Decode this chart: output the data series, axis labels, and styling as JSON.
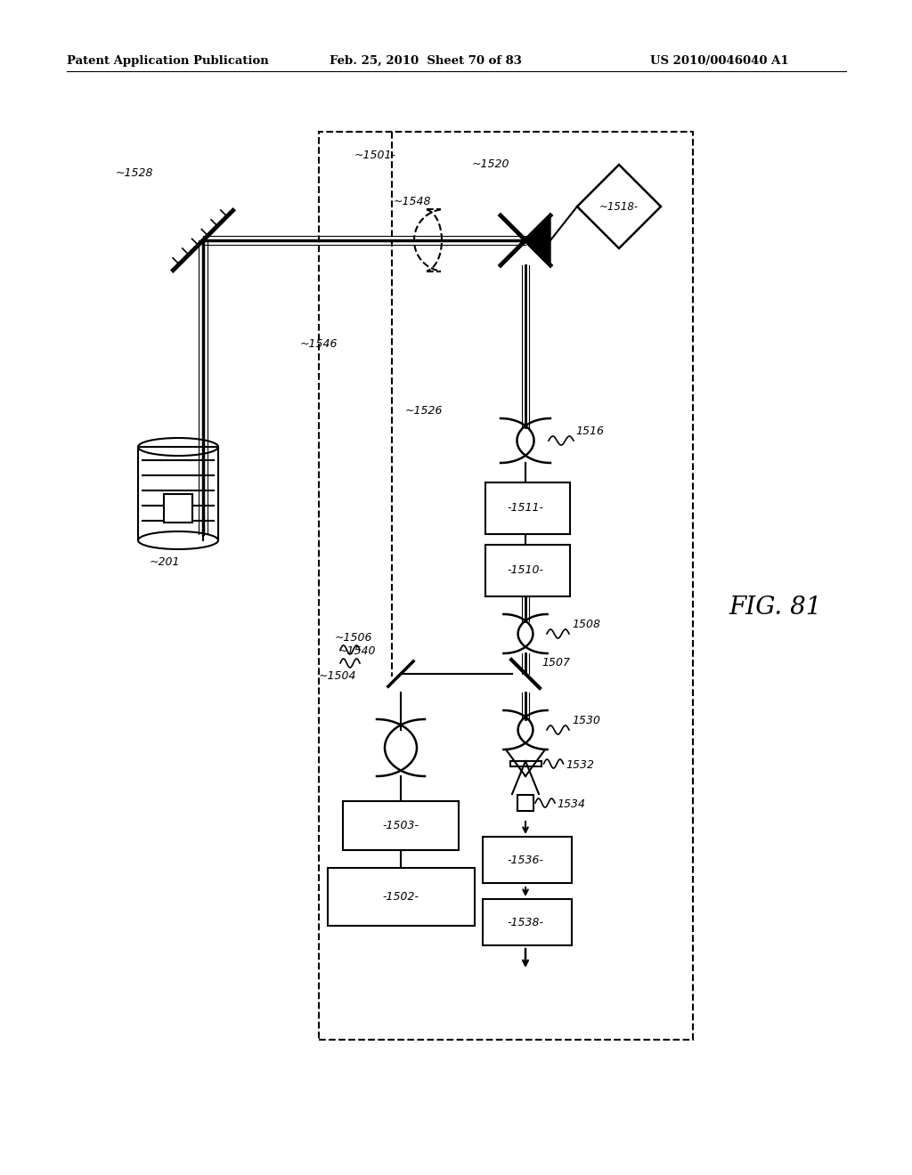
{
  "title_left": "Patent Application Publication",
  "title_mid": "Feb. 25, 2010  Sheet 70 of 83",
  "title_right": "US 2010/0046040 A1",
  "fig_label": "FIG. 81",
  "bg_color": "#ffffff",
  "line_color": "#000000"
}
